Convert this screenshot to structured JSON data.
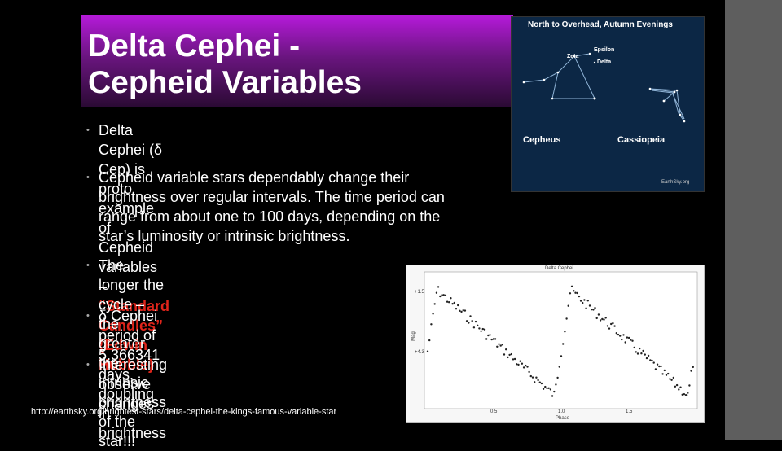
{
  "title": {
    "line1": "Delta Cephei -",
    "line2": "Cepheid Variables"
  },
  "bullets": {
    "b1": {
      "pre": "Delta Cephei (δ Cep) is proto example of Cepheid",
      "line2_pre": "variables – ",
      "red": "“Standard Candles” {Edwin Hubble}"
    },
    "b2": {
      "l1": "Cepheid variable stars dependably change their",
      "l2": "brightness over regular intervals. The time period can",
      "l3": "range from about one to 100 days, depending on the",
      "l4": "star’s luminosity or intrinsic brightness."
    },
    "b3": {
      "l1": "The longer the cycle – the greater",
      "l2": "the intrinsic brightness of the star!!!"
    },
    "b4": {
      "l1": "δ Cephei period of 5.366341 days,",
      "l2": "doubling in brightness"
    },
    "b5": {
      "l1": "Interesting observe changes"
    },
    "dot": "•"
  },
  "source_url": "http://earthsky.org/brightest-stars/delta-cephei-the-kings-famous-variable-star",
  "sky_chart": {
    "title": "North to Overhead, Autumn Evenings",
    "labels": {
      "epsilon": "Epsilon",
      "zeta": "Zeta",
      "delta": "Delta",
      "cepheus": "Cepheus",
      "cassiopeia": "Cassiopeia",
      "credit": "EarthSky.org"
    }
  },
  "light_curve": {
    "title": "Delta Cephei",
    "ylabel": "Mag",
    "xlabel": "Phase",
    "yticks": [
      "+1.5",
      "+4.3"
    ],
    "xticks": [
      "0.5",
      "1.0",
      "1.5"
    ]
  },
  "colors": {
    "accent_red": "#e0251b",
    "title_gradient_top": "#b51ad9",
    "title_gradient_bottom": "#2a0a33",
    "sky_bg": "#0c2745"
  }
}
